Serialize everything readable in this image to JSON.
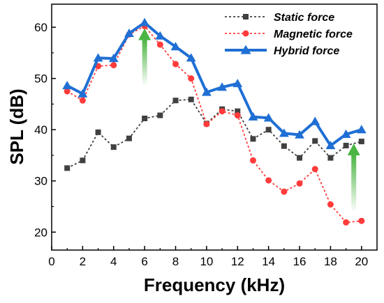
{
  "chart_data": {
    "type": "line",
    "xlabel": "Frequency (kHz)",
    "ylabel": "SPL (dB)",
    "xlim": [
      0,
      21
    ],
    "ylim": [
      16.5,
      64.5
    ],
    "xticks": [
      0,
      2,
      4,
      6,
      8,
      10,
      12,
      14,
      16,
      18,
      20
    ],
    "yticks": [
      20,
      30,
      40,
      50,
      60
    ],
    "x": [
      1,
      2,
      3,
      4,
      5,
      6,
      7,
      8,
      9,
      10,
      11,
      12,
      13,
      14,
      15,
      16,
      17,
      18,
      19,
      20
    ],
    "series": [
      {
        "name": "Static force",
        "color": "#404040",
        "marker": "square",
        "line_style": "dotted",
        "values": [
          32.5,
          34.0,
          39.5,
          36.6,
          38.3,
          42.2,
          42.8,
          45.7,
          45.9,
          41.2,
          44.0,
          43.6,
          38.2,
          40.0,
          36.8,
          34.5,
          37.8,
          34.5,
          36.9,
          37.7
        ]
      },
      {
        "name": "Magnetic force",
        "color": "#ff3b3b",
        "marker": "circle",
        "line_style": "dotted",
        "values": [
          47.5,
          45.7,
          52.4,
          52.6,
          58.6,
          60.2,
          56.6,
          52.8,
          50.0,
          41.1,
          43.6,
          42.8,
          34.0,
          30.1,
          27.9,
          29.5,
          32.3,
          25.4,
          21.9,
          22.2
        ]
      },
      {
        "name": "Hybrid force",
        "color": "#1f6fd4",
        "marker": "triangle",
        "line_style": "solid",
        "values": [
          48.6,
          47.0,
          54.0,
          53.9,
          58.8,
          60.9,
          58.3,
          56.2,
          54.0,
          47.3,
          48.3,
          49.0,
          42.5,
          42.3,
          39.3,
          39.0,
          41.6,
          36.9,
          39.1,
          40.0
        ]
      }
    ],
    "annotations": [
      {
        "type": "arrow",
        "color": "#4bb543",
        "x": 6,
        "from": 48.5,
        "to": 59.8
      },
      {
        "type": "arrow",
        "color": "#4bb543",
        "x": 19.5,
        "from": 23.8,
        "to": 37.3
      }
    ],
    "legend_position": "top-right",
    "grid": false
  }
}
